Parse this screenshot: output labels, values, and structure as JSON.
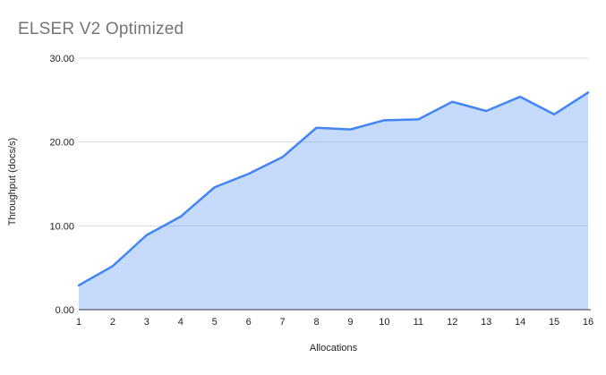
{
  "chart_data": {
    "type": "area",
    "title": "ELSER V2 Optimized",
    "xlabel": "Allocations",
    "ylabel": "Throughput (docs/s)",
    "categories": [
      "1",
      "2",
      "3",
      "4",
      "5",
      "6",
      "7",
      "8",
      "9",
      "10",
      "11",
      "12",
      "13",
      "14",
      "15",
      "16"
    ],
    "values": [
      2.9,
      5.2,
      8.9,
      11.1,
      14.6,
      16.2,
      18.2,
      21.7,
      21.5,
      22.6,
      22.7,
      24.8,
      23.7,
      25.4,
      23.3,
      25.9
    ],
    "series_name": "Throughput (docs/s)",
    "ylim": [
      0,
      30
    ],
    "yticks": [
      {
        "value": 0,
        "label": "0.00"
      },
      {
        "value": 10,
        "label": "10.00"
      },
      {
        "value": 20,
        "label": "20.00"
      },
      {
        "value": 30,
        "label": "30.00"
      }
    ],
    "grid": "horizontal",
    "legend": "none",
    "colors": {
      "line": "#4285f4",
      "fill": "rgba(66,133,244,0.30)",
      "gridline": "#d9d9d9",
      "axis_line": "#333333",
      "title_text": "#757575",
      "tick_text": "#222222",
      "background": "#ffffff"
    }
  }
}
